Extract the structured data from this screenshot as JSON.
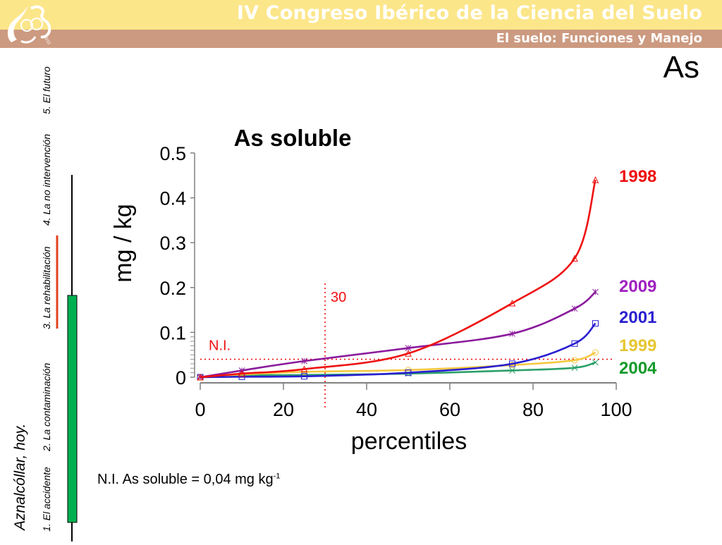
{
  "header": {
    "conference_title": "IV Congreso Ibérico de la Ciencia del Suelo",
    "conference_subtitle": "El suelo: Funciones y Manejo",
    "logo_year": "2010",
    "element_badge": "As",
    "colors": {
      "top_band": "#fce68a",
      "bottom_band": "#cc9a80"
    }
  },
  "sidebar": {
    "place_title": "Aznalcóllar, hoy.",
    "items": [
      {
        "label": "1. El accidente"
      },
      {
        "label": "2. La contaminación"
      },
      {
        "label": "3. La rehabilitación"
      },
      {
        "label": "4. La no intervención"
      },
      {
        "label": "5. El futuro"
      }
    ],
    "colors": {
      "timeline_line": "#000000",
      "timeline_bar": "#00b050",
      "rehab_marker": "#e2421c"
    }
  },
  "footnote": {
    "text": "N.I. As soluble = 0,04 mg kg",
    "superscript": "-1"
  },
  "chart_data": {
    "type": "line",
    "title": "As soluble",
    "xlabel": "percentiles",
    "ylabel": "mg / kg",
    "xlim": [
      0,
      100
    ],
    "ylim": [
      0,
      0.5
    ],
    "x_ticks": [
      "0",
      "20",
      "40",
      "60",
      "80",
      "100"
    ],
    "y_ticks": [
      "0",
      "0.1",
      "0.2",
      "0.3",
      "0.4",
      "0.5"
    ],
    "grid": false,
    "legend_placement": "right (labels at line ends)",
    "x": [
      0,
      10,
      25,
      50,
      75,
      90,
      95
    ],
    "series": [
      {
        "name": "1998",
        "color": "#ee1111",
        "marker": "triangle",
        "values": [
          0,
          0.008,
          0.018,
          0.053,
          0.165,
          0.265,
          0.44
        ]
      },
      {
        "name": "2009",
        "color": "#8b1a9c",
        "label_color": "#a020c0",
        "marker": "star",
        "values": [
          0,
          0.015,
          0.036,
          0.065,
          0.097,
          0.153,
          0.19
        ]
      },
      {
        "name": "2001",
        "color": "#2a1fd0",
        "marker": "square",
        "values": [
          0,
          0.001,
          0.002,
          0.01,
          0.03,
          0.075,
          0.12
        ]
      },
      {
        "name": "1999",
        "color": "#f5c842",
        "label_color": "#e6c630",
        "marker": "circle",
        "values": [
          0,
          0.006,
          0.012,
          0.016,
          0.027,
          0.038,
          0.055
        ]
      },
      {
        "name": "2004",
        "color": "#2ca06a",
        "label_color": "#139a2a",
        "marker": "x",
        "values": [
          0,
          0.004,
          0.005,
          0.008,
          0.015,
          0.021,
          0.033
        ]
      }
    ],
    "reference_lines": [
      {
        "orientation": "horizontal",
        "value": 0.04,
        "label": "N.I.",
        "color": "#ee1111",
        "style": "dotted"
      },
      {
        "orientation": "vertical",
        "value": 30,
        "label": "30",
        "color": "#ee1111",
        "style": "dotted"
      }
    ]
  }
}
